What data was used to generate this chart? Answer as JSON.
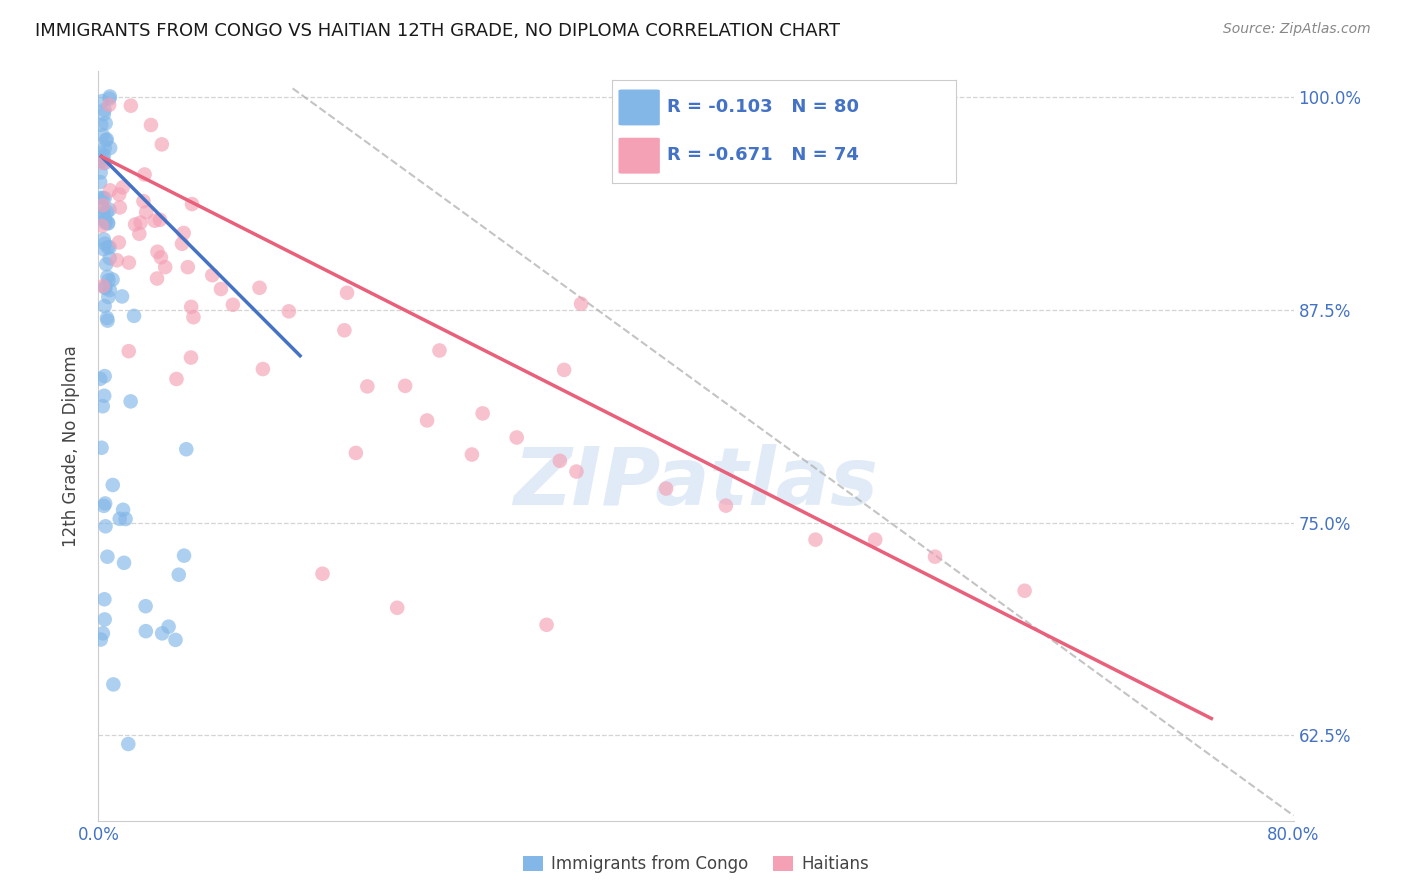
{
  "title": "IMMIGRANTS FROM CONGO VS HAITIAN 12TH GRADE, NO DIPLOMA CORRELATION CHART",
  "source": "Source: ZipAtlas.com",
  "ylabel": "12th Grade, No Diploma",
  "xlim": [
    0.0,
    0.8
  ],
  "ylim": [
    0.575,
    1.015
  ],
  "yticks": [
    0.625,
    0.75,
    0.875,
    1.0
  ],
  "ytick_labels": [
    "62.5%",
    "75.0%",
    "87.5%",
    "100.0%"
  ],
  "xtick_positions": [
    0.0,
    0.1,
    0.2,
    0.3,
    0.4,
    0.5,
    0.6,
    0.7,
    0.8
  ],
  "xtick_labels": [
    "0.0%",
    "",
    "",
    "",
    "",
    "",
    "",
    "",
    "80.0%"
  ],
  "legend_labels": [
    "Immigrants from Congo",
    "Haitians"
  ],
  "blue_R": -0.103,
  "blue_N": 80,
  "pink_R": -0.671,
  "pink_N": 74,
  "blue_color": "#82b7e8",
  "pink_color": "#f4a0b5",
  "blue_line_color": "#4472c4",
  "pink_line_color": "#e8607a",
  "axis_color": "#4472c4",
  "watermark": "ZIPatlas",
  "watermark_color": "#c5d9f0",
  "grid_color": "#d0d0d0",
  "background_color": "#ffffff",
  "blue_line_x": [
    0.002,
    0.135
  ],
  "blue_line_y": [
    0.965,
    0.848
  ],
  "pink_line_x": [
    0.002,
    0.745
  ],
  "pink_line_y": [
    0.965,
    0.635
  ],
  "diag_line_x": [
    0.13,
    0.8
  ],
  "diag_line_y": [
    1.005,
    0.578
  ]
}
